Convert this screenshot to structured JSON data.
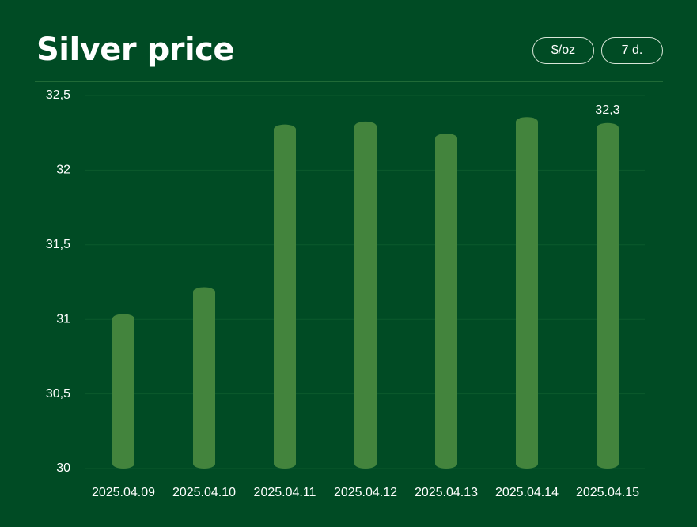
{
  "chart_data": {
    "type": "bar",
    "title": "Silver price",
    "controls": [
      "$/oz",
      "7 d."
    ],
    "categories": [
      "2025.04.09",
      "2025.04.10",
      "2025.04.11",
      "2025.04.12",
      "2025.04.13",
      "2025.04.14",
      "2025.04.15"
    ],
    "values": [
      31.02,
      31.2,
      32.29,
      32.31,
      32.23,
      32.34,
      32.3
    ],
    "value_labels": [
      null,
      null,
      null,
      null,
      null,
      null,
      "32,3"
    ],
    "color": "#43843d",
    "ylim": [
      30,
      32.5
    ],
    "yticks": [
      30,
      {
        "value": 30.5,
        "label": "30,5"
      },
      31,
      {
        "value": 31.5,
        "label": "31,5"
      },
      32,
      {
        "value": 32.5,
        "label": "32,5"
      }
    ],
    "grid": true
  }
}
